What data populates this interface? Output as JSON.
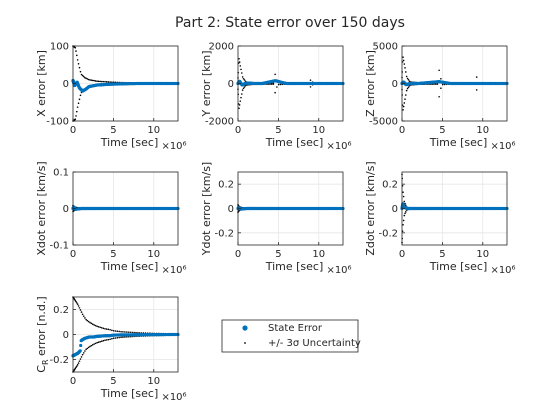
{
  "figure": {
    "title": "Part 2: State error over 150 days",
    "multiplier_label": "×10⁶",
    "colors": {
      "state_error": "#0072BD",
      "uncertainty": "#000000",
      "grid": "#e6e6e6",
      "axis": "#262626"
    }
  },
  "legend": {
    "entries": [
      {
        "label": "State Error",
        "marker": "dot",
        "color": "#0072BD"
      },
      {
        "label": "+/- 3σ Uncertainty",
        "marker": "point",
        "color": "#000000"
      }
    ]
  },
  "chart_data": [
    {
      "type": "scatter",
      "name": "X",
      "xlabel": "Time [sec]",
      "ylabel": "X error [km]",
      "xlim": [
        0,
        13
      ],
      "ylim": [
        -100,
        100
      ],
      "xticks": [
        0,
        5,
        10
      ],
      "yticks": [
        -100,
        0,
        100
      ],
      "x_multiplier": "×10⁶",
      "grid": true,
      "series": [
        {
          "name": "State Error",
          "role": "error",
          "x": [
            0,
            0.2,
            0.5,
            0.8,
            1.2,
            1.6,
            2.0,
            3.0,
            4.5,
            6,
            8,
            10,
            12.9
          ],
          "y": [
            8,
            -6,
            4,
            -12,
            -20,
            -15,
            -8,
            -4,
            -2,
            -1,
            0,
            0,
            0
          ]
        },
        {
          "name": "+/- 3σ Uncertainty",
          "role": "sigma",
          "x": [
            0,
            0.3,
            0.6,
            1.0,
            1.5,
            2.0,
            3.0,
            4.5,
            6,
            8,
            10,
            12.9
          ],
          "y": [
            100,
            95,
            60,
            25,
            15,
            10,
            6,
            4,
            2.5,
            1.5,
            1,
            0.5
          ]
        }
      ]
    },
    {
      "type": "scatter",
      "name": "Y",
      "xlabel": "Time [sec]",
      "ylabel": "Y error [km]",
      "xlim": [
        0,
        13
      ],
      "ylim": [
        -2000,
        2000
      ],
      "xticks": [
        0,
        5,
        10
      ],
      "yticks": [
        -2000,
        0,
        2000
      ],
      "x_multiplier": "×10⁶",
      "grid": true,
      "series": [
        {
          "name": "State Error",
          "role": "error",
          "x": [
            0,
            0.2,
            0.5,
            1.0,
            2.0,
            3.0,
            4.6,
            6,
            9,
            12.9
          ],
          "y": [
            0,
            120,
            -80,
            20,
            0,
            0,
            150,
            0,
            0,
            0
          ]
        },
        {
          "name": "+/- 3σ Uncertainty",
          "role": "sigma",
          "x": [
            0,
            0.1,
            0.3,
            0.6,
            1.0,
            2.0,
            3.5,
            4.4,
            4.6,
            4.9,
            6,
            8.8,
            9.0,
            9.3,
            11,
            12.9
          ],
          "y": [
            300,
            1400,
            900,
            300,
            80,
            40,
            30,
            30,
            500,
            60,
            30,
            30,
            200,
            40,
            20,
            15
          ]
        }
      ]
    },
    {
      "type": "scatter",
      "name": "Z",
      "xlabel": "Time [sec]",
      "ylabel": "Z error [km]",
      "xlim": [
        0,
        13
      ],
      "ylim": [
        -5000,
        5000
      ],
      "xticks": [
        0,
        5,
        10
      ],
      "yticks": [
        -5000,
        0,
        5000
      ],
      "x_multiplier": "×10⁶",
      "grid": true,
      "series": [
        {
          "name": "State Error",
          "role": "error",
          "x": [
            0,
            0.2,
            0.5,
            1.0,
            2.0,
            4.6,
            6,
            9.2,
            12.9
          ],
          "y": [
            0,
            200,
            -150,
            0,
            0,
            250,
            0,
            0,
            0
          ]
        },
        {
          "name": "+/- 3σ Uncertainty",
          "role": "sigma",
          "x": [
            0,
            0.1,
            0.3,
            0.6,
            1.0,
            2.0,
            3.5,
            4.4,
            4.6,
            4.9,
            6,
            9.0,
            9.2,
            9.5,
            11,
            12.9
          ],
          "y": [
            800,
            3700,
            2500,
            800,
            200,
            100,
            80,
            80,
            1800,
            150,
            80,
            80,
            1000,
            100,
            60,
            40
          ]
        }
      ]
    },
    {
      "type": "scatter",
      "name": "Xdot",
      "xlabel": "Time [sec]",
      "ylabel": "Xdot error [km/s]",
      "xlim": [
        0,
        13
      ],
      "ylim": [
        -0.1,
        0.1
      ],
      "xticks": [
        0,
        5,
        10
      ],
      "yticks": [
        -0.1,
        0,
        0.1
      ],
      "x_multiplier": "×10⁶",
      "grid": true,
      "series": [
        {
          "name": "State Error",
          "role": "error",
          "x": [
            0,
            0.1,
            0.3,
            1,
            3,
            6,
            9,
            12.9
          ],
          "y": [
            0,
            0.004,
            -0.002,
            0,
            0,
            0,
            0,
            0
          ]
        },
        {
          "name": "+/- 3σ Uncertainty",
          "role": "sigma",
          "x": [
            0,
            0.1,
            0.3,
            1,
            3,
            6,
            9,
            12.9
          ],
          "y": [
            0.008,
            0.006,
            0.003,
            0.001,
            0.0005,
            0.0003,
            0.0002,
            0.0001
          ]
        }
      ]
    },
    {
      "type": "scatter",
      "name": "Ydot",
      "xlabel": "Time [sec]",
      "ylabel": "Ydot error [km/s]",
      "xlim": [
        0,
        13
      ],
      "ylim": [
        -0.3,
        0.3
      ],
      "xticks": [
        0,
        5,
        10
      ],
      "yticks": [
        -0.2,
        0,
        0.2
      ],
      "x_multiplier": "×10⁶",
      "grid": true,
      "series": [
        {
          "name": "State Error",
          "role": "error",
          "x": [
            0,
            0.1,
            0.3,
            1,
            3,
            6,
            9,
            12.9
          ],
          "y": [
            0,
            0.01,
            -0.005,
            0,
            0,
            0,
            0,
            0
          ]
        },
        {
          "name": "+/- 3σ Uncertainty",
          "role": "sigma",
          "x": [
            0,
            0.1,
            0.3,
            1,
            3,
            6,
            9,
            12.9
          ],
          "y": [
            0.03,
            0.02,
            0.01,
            0.003,
            0.002,
            0.001,
            0.001,
            0.0005
          ]
        }
      ]
    },
    {
      "type": "scatter",
      "name": "Zdot",
      "xlabel": "Time [sec]",
      "ylabel": "Zdot error [km/s]",
      "xlim": [
        0,
        13
      ],
      "ylim": [
        -0.3,
        0.3
      ],
      "xticks": [
        0,
        5,
        10
      ],
      "yticks": [
        -0.2,
        0,
        0.2
      ],
      "x_multiplier": "×10⁶",
      "grid": true,
      "series": [
        {
          "name": "State Error",
          "role": "error",
          "x": [
            0,
            0.1,
            0.2,
            0.3,
            0.6,
            1,
            3,
            6,
            9,
            12.9
          ],
          "y": [
            0,
            0.04,
            0.02,
            0.01,
            0,
            0,
            0,
            0,
            0,
            0
          ]
        },
        {
          "name": "+/- 3σ Uncertainty",
          "role": "sigma",
          "x": [
            0,
            0.1,
            0.3,
            0.6,
            1,
            3,
            6,
            9,
            12.9
          ],
          "y": [
            0.28,
            0.15,
            0.05,
            0.01,
            0.004,
            0.002,
            0.001,
            0.001,
            0.0005
          ]
        }
      ]
    },
    {
      "type": "scatter",
      "name": "CR",
      "xlabel": "Time [sec]",
      "ylabel": "C_R error [n.d.]",
      "ylabel_main": "C",
      "ylabel_sub": "R",
      "ylabel_rest": " error [n.d.]",
      "xlim": [
        0,
        13
      ],
      "ylim": [
        -0.3,
        0.3
      ],
      "xticks": [
        0,
        5,
        10
      ],
      "yticks": [
        -0.2,
        0,
        0.2
      ],
      "x_multiplier": "×10⁶",
      "grid": true,
      "series": [
        {
          "name": "State Error",
          "role": "error",
          "x": [
            0,
            0.3,
            0.6,
            0.9,
            1.0,
            1.2,
            1.5,
            2.0,
            2.5,
            3.0,
            4.0,
            4.5,
            5.0,
            6.0,
            8.0,
            10.0,
            12.9
          ],
          "y": [
            -0.17,
            -0.16,
            -0.15,
            -0.13,
            -0.05,
            -0.04,
            -0.03,
            -0.02,
            -0.02,
            -0.015,
            -0.01,
            -0.01,
            -0.005,
            -0.003,
            -0.002,
            -0.001,
            0
          ]
        },
        {
          "name": "+/- 3σ Uncertainty",
          "role": "sigma",
          "x": [
            0,
            0.3,
            0.6,
            0.9,
            1.2,
            1.6,
            2.0,
            2.5,
            3.0,
            3.5,
            4.0,
            4.5,
            5.0,
            6.0,
            8.0,
            10.0,
            12.9
          ],
          "y": [
            0.3,
            0.27,
            0.24,
            0.2,
            0.16,
            0.12,
            0.1,
            0.08,
            0.065,
            0.055,
            0.045,
            0.04,
            0.03,
            0.022,
            0.014,
            0.009,
            0.005
          ]
        }
      ]
    }
  ]
}
